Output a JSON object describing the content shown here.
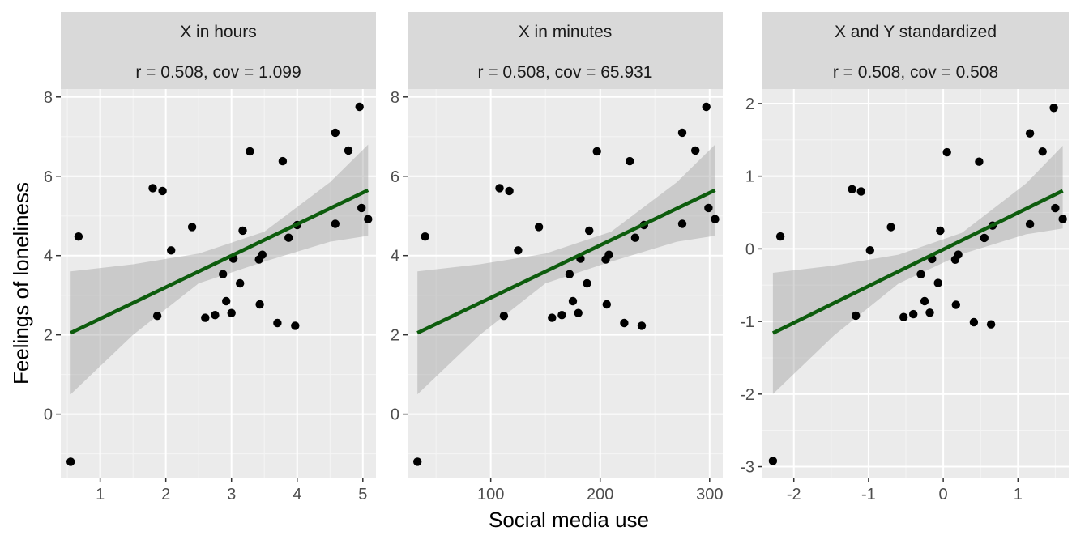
{
  "colors": {
    "panel_background": "#ebebeb",
    "strip_background": "#d9d9d9",
    "grid_major": "#ffffff",
    "grid_minor": "#f5f5f5",
    "points": "#000000",
    "fit_line": "#0d5c0d",
    "confidence_band": "#999999",
    "tick_text": "#4d4d4d"
  },
  "chart_data": [
    {
      "type": "scatter",
      "title": "X in hours",
      "subtitle": "r = 0.508, cov = 1.099",
      "xlabel": "Social media use",
      "ylabel": "Feelings of loneliness",
      "xlim": [
        0.4,
        5.2
      ],
      "ylim": [
        -1.6,
        8.2
      ],
      "xticks": [
        1,
        2,
        3,
        4,
        5
      ],
      "yticks": [
        0,
        2,
        4,
        6,
        8
      ],
      "grid": true,
      "points": [
        [
          0.55,
          -1.2
        ],
        [
          0.67,
          4.48
        ],
        [
          1.8,
          5.7
        ],
        [
          1.87,
          2.48
        ],
        [
          1.95,
          5.63
        ],
        [
          2.08,
          4.13
        ],
        [
          2.4,
          4.72
        ],
        [
          2.6,
          2.43
        ],
        [
          2.75,
          2.5
        ],
        [
          2.87,
          3.53
        ],
        [
          2.92,
          2.85
        ],
        [
          3.0,
          2.55
        ],
        [
          3.03,
          3.92
        ],
        [
          3.13,
          3.3
        ],
        [
          3.17,
          4.63
        ],
        [
          3.28,
          6.63
        ],
        [
          3.42,
          3.9
        ],
        [
          3.43,
          2.77
        ],
        [
          3.47,
          4.02
        ],
        [
          3.7,
          2.3
        ],
        [
          3.78,
          6.38
        ],
        [
          3.87,
          4.45
        ],
        [
          3.97,
          2.23
        ],
        [
          4.0,
          4.77
        ],
        [
          4.58,
          4.8
        ],
        [
          4.58,
          7.1
        ],
        [
          4.78,
          6.65
        ],
        [
          4.95,
          7.75
        ],
        [
          4.98,
          5.2
        ],
        [
          5.08,
          4.92
        ]
      ],
      "fit": {
        "x": [
          0.55,
          5.08
        ],
        "y": [
          2.05,
          5.65
        ]
      },
      "band": {
        "x": [
          0.55,
          1.5,
          2.5,
          3.5,
          4.5,
          5.08
        ],
        "upper": [
          3.6,
          3.78,
          4.05,
          4.6,
          5.85,
          6.8
        ],
        "lower": [
          0.5,
          2.0,
          3.3,
          3.85,
          4.35,
          4.5
        ]
      }
    },
    {
      "type": "scatter",
      "title": "X in minutes",
      "subtitle": "r = 0.508, cov = 65.931",
      "xlabel": "Social media use",
      "ylabel": "Feelings of loneliness",
      "xlim": [
        24,
        312
      ],
      "ylim": [
        -1.6,
        8.2
      ],
      "xticks": [
        100,
        200,
        300
      ],
      "yticks": [
        0,
        2,
        4,
        6,
        8
      ],
      "grid": true,
      "points": [
        [
          33,
          -1.2
        ],
        [
          40,
          4.48
        ],
        [
          108,
          5.7
        ],
        [
          112,
          2.48
        ],
        [
          117,
          5.63
        ],
        [
          125,
          4.13
        ],
        [
          144,
          4.72
        ],
        [
          156,
          2.43
        ],
        [
          165,
          2.5
        ],
        [
          172,
          3.53
        ],
        [
          175,
          2.85
        ],
        [
          180,
          2.55
        ],
        [
          182,
          3.92
        ],
        [
          188,
          3.3
        ],
        [
          190,
          4.63
        ],
        [
          197,
          6.63
        ],
        [
          205,
          3.9
        ],
        [
          206,
          2.77
        ],
        [
          208,
          4.02
        ],
        [
          222,
          2.3
        ],
        [
          227,
          6.38
        ],
        [
          232,
          4.45
        ],
        [
          238,
          2.23
        ],
        [
          240,
          4.77
        ],
        [
          275,
          4.8
        ],
        [
          275,
          7.1
        ],
        [
          287,
          6.65
        ],
        [
          297,
          7.75
        ],
        [
          299,
          5.2
        ],
        [
          305,
          4.92
        ]
      ],
      "fit": {
        "x": [
          33,
          305
        ],
        "y": [
          2.05,
          5.65
        ]
      },
      "band": {
        "x": [
          33,
          90,
          150,
          210,
          270,
          305
        ],
        "upper": [
          3.6,
          3.78,
          4.05,
          4.6,
          5.85,
          6.8
        ],
        "lower": [
          0.5,
          2.0,
          3.3,
          3.85,
          4.35,
          4.5
        ]
      }
    },
    {
      "type": "scatter",
      "title": "X and Y standardized",
      "subtitle": "r = 0.508, cov = 0.508",
      "xlabel": "Social media use",
      "ylabel": "Feelings of loneliness",
      "xlim": [
        -2.42,
        1.68
      ],
      "ylim": [
        -3.15,
        2.2
      ],
      "xticks": [
        -2,
        -1,
        0,
        1
      ],
      "yticks": [
        -3,
        -2,
        -1,
        0,
        1,
        2
      ],
      "grid": true,
      "points": [
        [
          -2.28,
          -2.92
        ],
        [
          -2.18,
          0.17
        ],
        [
          -1.22,
          0.82
        ],
        [
          -1.17,
          -0.92
        ],
        [
          -1.1,
          0.79
        ],
        [
          -0.98,
          -0.02
        ],
        [
          -0.7,
          0.3
        ],
        [
          -0.53,
          -0.94
        ],
        [
          -0.4,
          -0.9
        ],
        [
          -0.3,
          -0.35
        ],
        [
          -0.25,
          -0.72
        ],
        [
          -0.18,
          -0.88
        ],
        [
          -0.15,
          -0.14
        ],
        [
          -0.07,
          -0.47
        ],
        [
          -0.04,
          0.25
        ],
        [
          0.05,
          1.33
        ],
        [
          0.16,
          -0.15
        ],
        [
          0.17,
          -0.77
        ],
        [
          0.2,
          -0.08
        ],
        [
          0.41,
          -1.01
        ],
        [
          0.48,
          1.2
        ],
        [
          0.55,
          0.15
        ],
        [
          0.64,
          -1.04
        ],
        [
          0.66,
          0.32
        ],
        [
          1.16,
          0.34
        ],
        [
          1.16,
          1.59
        ],
        [
          1.33,
          1.34
        ],
        [
          1.48,
          1.94
        ],
        [
          1.5,
          0.56
        ],
        [
          1.6,
          0.41
        ]
      ],
      "fit": {
        "x": [
          -2.28,
          1.6
        ],
        "y": [
          -1.16,
          0.8
        ]
      },
      "band": {
        "x": [
          -2.28,
          -1.46,
          -0.6,
          0.25,
          1.11,
          1.6
        ],
        "upper": [
          -0.33,
          -0.23,
          -0.08,
          0.22,
          0.9,
          1.42
        ],
        "lower": [
          -2.0,
          -1.19,
          -0.48,
          -0.07,
          0.2,
          0.28
        ]
      }
    }
  ]
}
